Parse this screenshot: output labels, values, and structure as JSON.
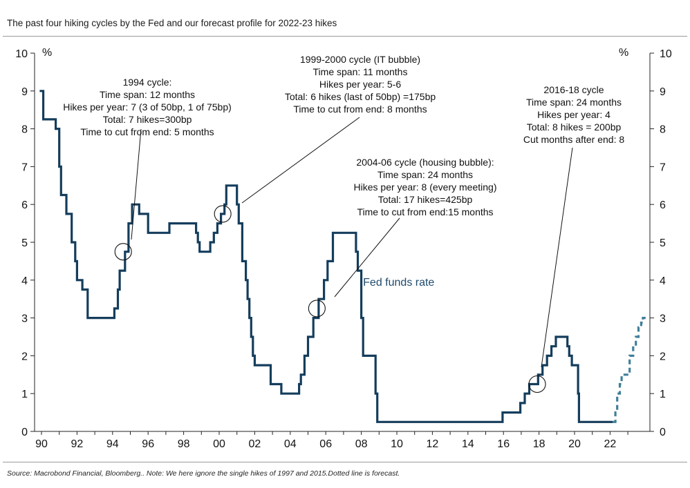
{
  "title": "The past four hiking cycles by the Fed and our forecast profile for 2022-23 hikes",
  "source": "Source: Macrobond Financial, Bloomberg.. Note: We here ignore the single hikes of 1997 and 2015.Dotted line is forecast.",
  "colors": {
    "actual": "#143d5c",
    "forecast": "#3f7f99"
  },
  "chart_data": {
    "type": "line",
    "title": "The past four hiking cycles by the Fed and our forecast profile for 2022-23 hikes",
    "xlabel": "",
    "ylabel": "%",
    "ylabel_right": "%",
    "xlim": [
      1989.8,
      2024.0
    ],
    "ylim": [
      0,
      10
    ],
    "x_ticks": [
      1990,
      1992,
      1994,
      1996,
      1998,
      2000,
      2002,
      2004,
      2006,
      2008,
      2010,
      2012,
      2014,
      2016,
      2018,
      2020,
      2022
    ],
    "x_tick_labels": [
      "90",
      "92",
      "94",
      "96",
      "98",
      "00",
      "02",
      "04",
      "06",
      "08",
      "10",
      "12",
      "14",
      "16",
      "18",
      "20",
      "22"
    ],
    "y_ticks": [
      0,
      1,
      2,
      3,
      4,
      5,
      6,
      7,
      8,
      9,
      10
    ],
    "series": [
      {
        "name": "Fed funds rate",
        "style": "solid",
        "points": [
          [
            1989.9,
            9.0
          ],
          [
            1990.1,
            8.25
          ],
          [
            1990.8,
            8.0
          ],
          [
            1991.0,
            7.0
          ],
          [
            1991.1,
            6.25
          ],
          [
            1991.4,
            5.75
          ],
          [
            1991.7,
            5.0
          ],
          [
            1991.9,
            4.5
          ],
          [
            1992.0,
            4.0
          ],
          [
            1992.3,
            3.75
          ],
          [
            1992.6,
            3.0
          ],
          [
            1994.1,
            3.25
          ],
          [
            1994.3,
            3.75
          ],
          [
            1994.4,
            4.25
          ],
          [
            1994.7,
            4.75
          ],
          [
            1994.9,
            5.5
          ],
          [
            1995.1,
            6.0
          ],
          [
            1995.5,
            5.75
          ],
          [
            1996.0,
            5.25
          ],
          [
            1997.2,
            5.5
          ],
          [
            1998.7,
            5.25
          ],
          [
            1998.8,
            5.0
          ],
          [
            1998.9,
            4.75
          ],
          [
            1999.5,
            5.0
          ],
          [
            1999.7,
            5.25
          ],
          [
            1999.9,
            5.5
          ],
          [
            2000.1,
            5.75
          ],
          [
            2000.3,
            6.0
          ],
          [
            2000.4,
            6.5
          ],
          [
            2001.0,
            6.0
          ],
          [
            2001.1,
            5.5
          ],
          [
            2001.3,
            4.5
          ],
          [
            2001.5,
            4.0
          ],
          [
            2001.6,
            3.5
          ],
          [
            2001.7,
            3.0
          ],
          [
            2001.8,
            2.5
          ],
          [
            2001.9,
            2.0
          ],
          [
            2002.0,
            1.75
          ],
          [
            2002.9,
            1.25
          ],
          [
            2003.5,
            1.0
          ],
          [
            2004.5,
            1.25
          ],
          [
            2004.6,
            1.5
          ],
          [
            2004.8,
            2.0
          ],
          [
            2005.0,
            2.5
          ],
          [
            2005.3,
            3.0
          ],
          [
            2005.6,
            3.5
          ],
          [
            2005.9,
            4.0
          ],
          [
            2006.1,
            4.5
          ],
          [
            2006.4,
            5.25
          ],
          [
            2007.7,
            4.75
          ],
          [
            2007.8,
            4.25
          ],
          [
            2008.0,
            3.0
          ],
          [
            2008.1,
            2.0
          ],
          [
            2008.8,
            1.0
          ],
          [
            2008.9,
            0.25
          ],
          [
            2015.95,
            0.5
          ],
          [
            2016.95,
            0.75
          ],
          [
            2017.2,
            1.0
          ],
          [
            2017.45,
            1.25
          ],
          [
            2017.95,
            1.5
          ],
          [
            2018.2,
            1.75
          ],
          [
            2018.45,
            2.0
          ],
          [
            2018.7,
            2.25
          ],
          [
            2018.95,
            2.5
          ],
          [
            2019.6,
            2.25
          ],
          [
            2019.7,
            2.0
          ],
          [
            2019.85,
            1.75
          ],
          [
            2020.2,
            1.0
          ],
          [
            2020.25,
            0.25
          ],
          [
            2022.15,
            0.25
          ]
        ],
        "end_x": 2022.15
      },
      {
        "name": "Forecast",
        "style": "dotted",
        "points": [
          [
            2022.15,
            0.25
          ],
          [
            2022.3,
            0.5
          ],
          [
            2022.4,
            1.0
          ],
          [
            2022.55,
            1.25
          ],
          [
            2022.65,
            1.5
          ],
          [
            2023.1,
            2.0
          ],
          [
            2023.3,
            2.25
          ],
          [
            2023.45,
            2.5
          ],
          [
            2023.6,
            2.75
          ],
          [
            2023.75,
            2.875
          ],
          [
            2023.85,
            3.0
          ]
        ],
        "end_x": 2024.0
      }
    ],
    "series_label": {
      "text": "Fed funds rate",
      "x": 2008.1,
      "y": 3.85
    },
    "annotations": [
      {
        "lines": [
          "1994 cycle:",
          "Time span: 12 months",
          "Hikes per year: 7 (3 of 50bp, 1 of 75bp)",
          "Total: 7 hikes=300bp",
          "Time to cut from end: 5 months"
        ],
        "circle": [
          1994.6,
          4.75
        ]
      },
      {
        "lines": [
          "1999-2000 cycle (IT bubble)",
          "Time span: 11 months",
          "Hikes per year: 5-6",
          "Total: 6 hikes (last of 50bp) =175bp",
          "Time to cut from end: 8 months"
        ],
        "circle": [
          2000.2,
          5.75
        ]
      },
      {
        "lines": [
          "2004-06 cycle (housing bubble):",
          "Time span: 24 months",
          "Hikes per year: 8 (every meeting)",
          "Total: 17 hikes=425bp",
          "Time to cut from end:15 months"
        ],
        "circle": [
          2005.5,
          3.25
        ]
      },
      {
        "lines": [
          "2016-18 cycle",
          "Time span: 24 months",
          "Hikes per year: 4",
          "Total: 8 hikes = 200bp",
          "Cut months after end: 8"
        ],
        "circle": [
          2017.9,
          1.25
        ]
      }
    ]
  }
}
